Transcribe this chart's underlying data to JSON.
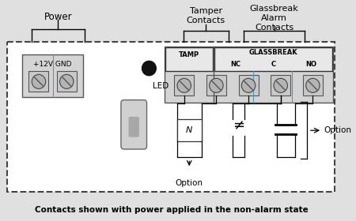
{
  "bg_color": "#e0e0e0",
  "board_bg": "#ffffff",
  "title_text": "Contacts shown with power applied in the non-alarm state",
  "power_label": "Power",
  "tamper_label": "Tamper\nContacts",
  "glassbreak_label": "Glassbreak\nAlarm\nContacts",
  "tamp_header": "TAMP",
  "gb_header": "GLASSBREAK",
  "nc_label": "NC",
  "c_label": "C",
  "no_label": "NO",
  "v12_label": "+12V GND",
  "led_label": "LED",
  "option_label": "Option",
  "option_label2": "Option"
}
